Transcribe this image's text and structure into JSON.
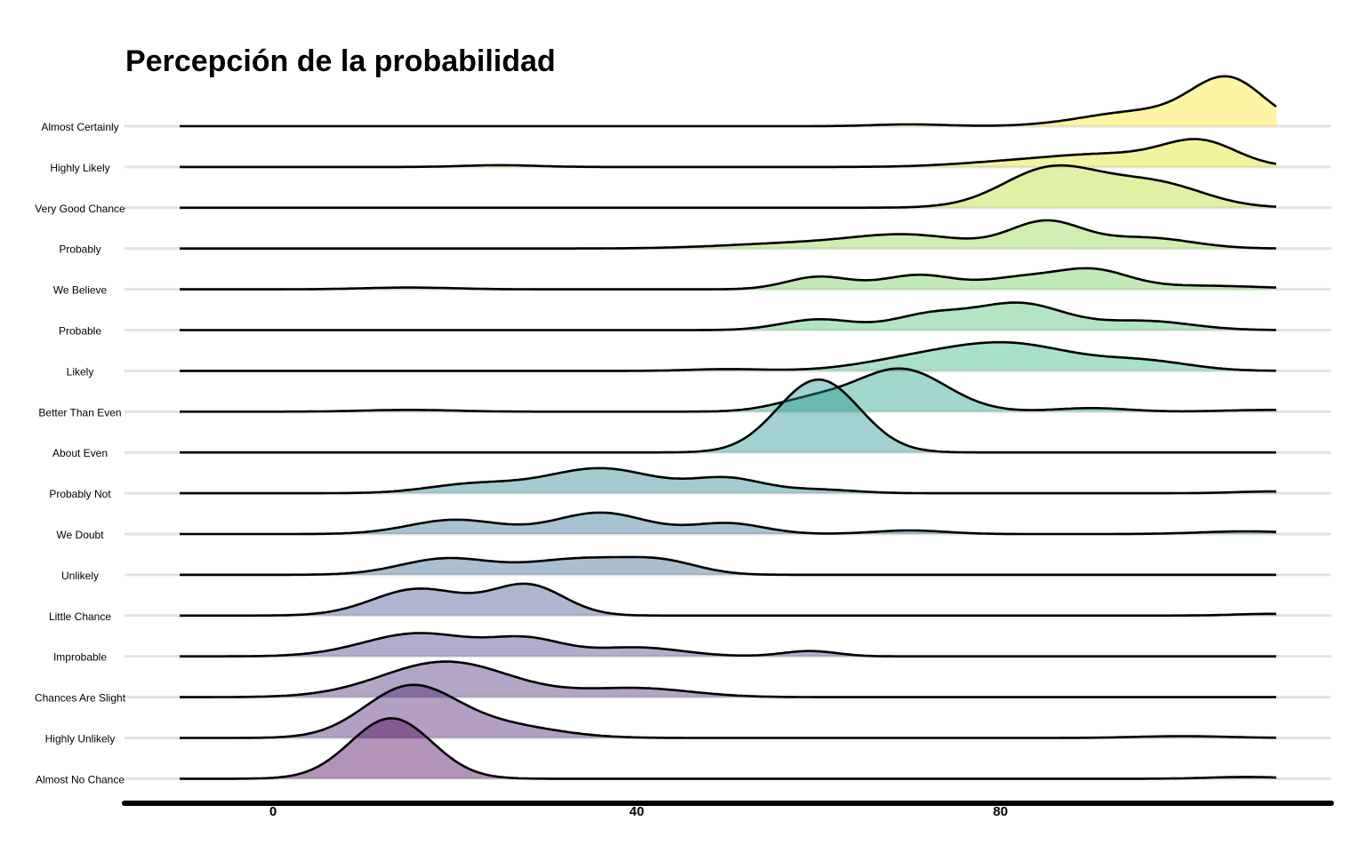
{
  "chart_data": {
    "type": "ridgeline",
    "title": "Percepción de la probabilidad",
    "xlabel": "",
    "ylabel": "",
    "x_ticks": [
      0,
      40,
      80
    ],
    "x_range": [
      -10,
      110
    ],
    "grid": "horizontal baseline per category",
    "categories": [
      "Almost Certainly",
      "Highly Likely",
      "Very Good Chance",
      "Probably",
      "We Believe",
      "Probable",
      "Likely",
      "Better Than Even",
      "About Even",
      "Probably Not",
      "We Doubt",
      "Unlikely",
      "Little Chance",
      "Improbable",
      "Chances Are Slight",
      "Highly Unlikely",
      "Almost No Chance"
    ],
    "fill_colors": [
      "#fde725",
      "#dfe318",
      "#b5de2b",
      "#8fd744",
      "#6ece58",
      "#4ac16d",
      "#2fb47c",
      "#1fa187",
      "#21918c",
      "#25848e",
      "#2c728e",
      "#33638d",
      "#3b528b",
      "#433e85",
      "#482878",
      "#481b6d",
      "#440154"
    ],
    "series": [
      {
        "peaks": [
          [
            60,
            2,
            4
          ],
          [
            85,
            16,
            6
          ],
          [
            95,
            52,
            4
          ]
        ]
      },
      {
        "peaks": [
          [
            15,
            2,
            4
          ],
          [
            70,
            4,
            6
          ],
          [
            82,
            14,
            7
          ],
          [
            92,
            26,
            4
          ]
        ]
      },
      {
        "peaks": [
          [
            75,
            30,
            5
          ],
          [
            80,
            20,
            7
          ],
          [
            88,
            18,
            5
          ]
        ]
      },
      {
        "peaks": [
          [
            48,
            6,
            8
          ],
          [
            60,
            14,
            6
          ],
          [
            75,
            30,
            4
          ],
          [
            86,
            12,
            5
          ]
        ]
      },
      {
        "peaks": [
          [
            5,
            2,
            5
          ],
          [
            50,
            14,
            3.5
          ],
          [
            61,
            16,
            4
          ],
          [
            72,
            12,
            4
          ],
          [
            80,
            21,
            4
          ],
          [
            92,
            4,
            7
          ]
        ]
      },
      {
        "peaks": [
          [
            50,
            12,
            4
          ],
          [
            62,
            16,
            4
          ],
          [
            72,
            30,
            5
          ],
          [
            86,
            10,
            5
          ]
        ]
      },
      {
        "peaks": [
          [
            40,
            2,
            4
          ],
          [
            60,
            10,
            6
          ],
          [
            71,
            30,
            7
          ],
          [
            86,
            10,
            5
          ]
        ]
      },
      {
        "peaks": [
          [
            5,
            2,
            5
          ],
          [
            49,
            12,
            4
          ],
          [
            59,
            48,
            5
          ],
          [
            80,
            4,
            4
          ],
          [
            100,
            2,
            5
          ]
        ]
      },
      {
        "peaks": [
          [
            50,
            82,
            4.5
          ]
        ]
      },
      {
        "peaks": [
          [
            12,
            10,
            5
          ],
          [
            26,
            28,
            6
          ],
          [
            40,
            16,
            4
          ],
          [
            50,
            4,
            4
          ],
          [
            100,
            2,
            4
          ]
        ]
      },
      {
        "peaks": [
          [
            10,
            16,
            5
          ],
          [
            26,
            24,
            5
          ],
          [
            40,
            12,
            4
          ],
          [
            60,
            4,
            4
          ],
          [
            97,
            3,
            5
          ]
        ]
      },
      {
        "peaks": [
          [
            9,
            18,
            5
          ],
          [
            24,
            18,
            6
          ],
          [
            33,
            12,
            4
          ]
        ]
      },
      {
        "peaks": [
          [
            6,
            30,
            5
          ],
          [
            18,
            34,
            4
          ],
          [
            100,
            2,
            4
          ]
        ]
      },
      {
        "peaks": [
          [
            6,
            26,
            6
          ],
          [
            18,
            18,
            4
          ],
          [
            30,
            10,
            5
          ],
          [
            49,
            6,
            3
          ]
        ]
      },
      {
        "peaks": [
          [
            9,
            40,
            7
          ],
          [
            30,
            10,
            6
          ]
        ]
      },
      {
        "peaks": [
          [
            5,
            56,
            5
          ],
          [
            15,
            14,
            6
          ],
          [
            90,
            2,
            5
          ]
        ]
      },
      {
        "peaks": [
          [
            3,
            68,
            4.5
          ],
          [
            97,
            2,
            4
          ]
        ]
      }
    ]
  }
}
